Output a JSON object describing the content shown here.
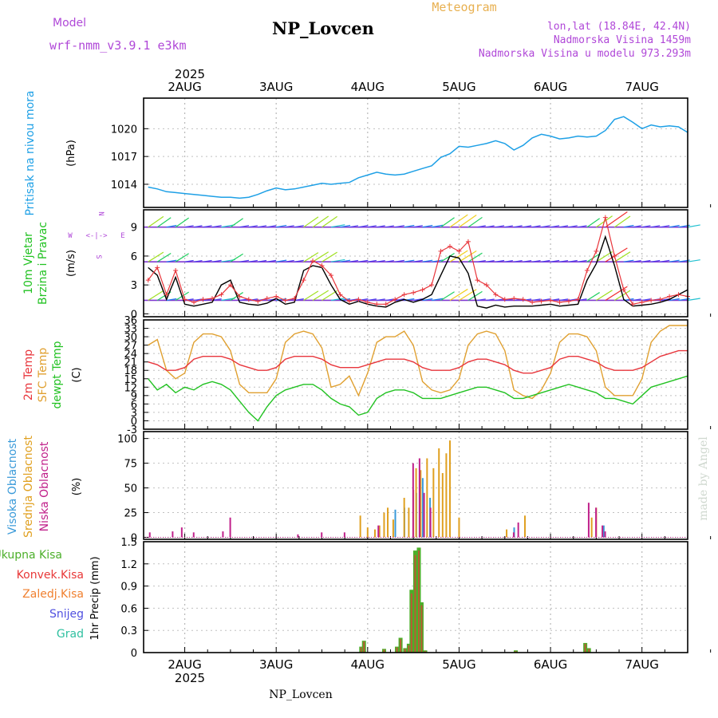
{
  "header": {
    "model_label": "Model",
    "model_name": "wrf-nmm_v3.9.1 e3km",
    "station": "NP_Lovcen",
    "meteogram": "Meteogram",
    "coords": "lon,lat (18.84E, 42.4N)",
    "height": "Nadmorska Visina 1459m",
    "model_height": "Nadmorska Visina u modelu 973.293m",
    "footer_station": "NP_Lovcen",
    "credit": "made by Angel",
    "year": "2025"
  },
  "colors": {
    "pressure": "#1ea0e6",
    "wind_black": "#000000",
    "gust": "#e8363c",
    "t2m": "#e8363c",
    "sfc": "#e0a030",
    "dew": "#22c222",
    "cloud_high": "#3a9ad9",
    "cloud_mid": "#e0a020",
    "cloud_low": "#c0208a",
    "rain_total": "#4caf2a",
    "rain_conv": "#e83838",
    "rain_frozen": "#f08030",
    "snow": "#5050e0",
    "grad": "#30c0a0",
    "label_purple": "#b048d8"
  },
  "chart_data": [
    {
      "type": "line",
      "title": "Pritisak na nivou mora",
      "ylabel": "(hPa)",
      "ylim": [
        1011.5,
        1023.3
      ],
      "yticks": [
        "1014",
        "1017",
        "1020"
      ],
      "ytick_values": [
        1014,
        1017,
        1020
      ],
      "x_unit": "days since 2025-08-01 00:00",
      "x": [
        1.6,
        1.7,
        1.8,
        1.9,
        2.0,
        2.1,
        2.2,
        2.3,
        2.4,
        2.5,
        2.6,
        2.7,
        2.8,
        2.9,
        3.0,
        3.1,
        3.2,
        3.3,
        3.4,
        3.5,
        3.6,
        3.7,
        3.8,
        3.9,
        4.0,
        4.1,
        4.2,
        4.3,
        4.4,
        4.5,
        4.6,
        4.7,
        4.8,
        4.9,
        5.0,
        5.1,
        5.2,
        5.3,
        5.4,
        5.5,
        5.6,
        5.7,
        5.8,
        5.9,
        6.0,
        6.1,
        6.2,
        6.3,
        6.4,
        6.5,
        6.6,
        6.7,
        6.8,
        6.9,
        7.0,
        7.1,
        7.2,
        7.3,
        7.4,
        7.5
      ],
      "series": [
        {
          "name": "MSLP",
          "values": [
            1013.7,
            1013.5,
            1013.2,
            1013.1,
            1013.0,
            1012.9,
            1012.8,
            1012.7,
            1012.6,
            1012.6,
            1012.5,
            1012.6,
            1012.9,
            1013.3,
            1013.6,
            1013.4,
            1013.5,
            1013.7,
            1013.9,
            1014.1,
            1014.0,
            1014.1,
            1014.2,
            1014.7,
            1015.0,
            1015.3,
            1015.1,
            1015.0,
            1015.1,
            1015.4,
            1015.7,
            1016.0,
            1016.9,
            1017.3,
            1018.1,
            1018.0,
            1018.2,
            1018.4,
            1018.7,
            1018.4,
            1017.7,
            1018.2,
            1019.0,
            1019.4,
            1019.2,
            1018.9,
            1019.0,
            1019.2,
            1019.1,
            1019.2,
            1019.8,
            1021.0,
            1021.3,
            1020.7,
            1020.0,
            1020.4,
            1020.2,
            1020.3,
            1020.2,
            1019.6
          ]
        }
      ]
    },
    {
      "type": "line",
      "title": "10m Vjetar Brzina i Pravac",
      "ylabel": "(m/s)",
      "ylim": [
        0,
        10
      ],
      "yticks": [
        "0",
        "3",
        "6",
        "9"
      ],
      "ytick_values": [
        0,
        3,
        6,
        9
      ],
      "barb_levels": [
        1.4,
        5.4,
        9.0
      ],
      "compass": {
        "n": "N",
        "s": "S",
        "w": "W",
        "e": "E",
        "arrows": "<-|->"
      },
      "x": [
        1.6,
        1.7,
        1.8,
        1.9,
        2.0,
        2.1,
        2.2,
        2.3,
        2.4,
        2.5,
        2.6,
        2.7,
        2.8,
        2.9,
        3.0,
        3.1,
        3.2,
        3.3,
        3.4,
        3.5,
        3.6,
        3.7,
        3.8,
        3.9,
        4.0,
        4.1,
        4.2,
        4.3,
        4.4,
        4.5,
        4.6,
        4.7,
        4.8,
        4.9,
        5.0,
        5.1,
        5.2,
        5.3,
        5.4,
        5.5,
        5.6,
        5.7,
        5.8,
        5.9,
        6.0,
        6.1,
        6.2,
        6.3,
        6.4,
        6.5,
        6.6,
        6.7,
        6.8,
        6.9,
        7.0,
        7.1,
        7.2,
        7.3,
        7.4,
        7.5
      ],
      "series": [
        {
          "name": "Brzina",
          "values": [
            4.8,
            4.0,
            1.5,
            3.8,
            1.0,
            0.8,
            1.0,
            1.2,
            3.0,
            3.5,
            1.2,
            1.0,
            0.9,
            1.1,
            1.6,
            1.0,
            1.2,
            4.5,
            5.0,
            4.8,
            3.0,
            1.5,
            1.0,
            1.3,
            1.0,
            0.8,
            0.7,
            1.2,
            1.5,
            1.2,
            1.5,
            2.0,
            4.0,
            6.0,
            5.8,
            4.2,
            0.8,
            0.6,
            0.9,
            0.7,
            0.8,
            0.8,
            0.8,
            0.9,
            1.0,
            0.8,
            0.9,
            1.0,
            3.5,
            5.2,
            8.0,
            5.0,
            1.5,
            0.8,
            0.9,
            1.0,
            1.2,
            1.5,
            2.0,
            2.5
          ]
        },
        {
          "name": "Udari",
          "values": [
            3.5,
            4.8,
            2.0,
            4.5,
            1.5,
            1.2,
            1.5,
            1.6,
            2.0,
            3.0,
            1.8,
            1.5,
            1.3,
            1.6,
            1.8,
            1.4,
            1.6,
            3.5,
            5.5,
            5.0,
            4.0,
            2.0,
            1.3,
            1.5,
            1.2,
            1.0,
            1.0,
            1.5,
            2.0,
            2.2,
            2.5,
            3.0,
            6.5,
            7.0,
            6.5,
            7.5,
            3.5,
            3.0,
            2.0,
            1.5,
            1.6,
            1.5,
            1.2,
            1.3,
            1.4,
            1.2,
            1.3,
            1.5,
            4.5,
            6.5,
            10.0,
            6.0,
            2.5,
            1.0,
            1.2,
            1.4,
            1.5,
            1.8,
            2.0,
            1.8
          ]
        }
      ]
    },
    {
      "type": "line",
      "title": "2m Temp / SFC Temp / dewpt Temp",
      "ylabel": "(C)",
      "ylim": [
        -3,
        36
      ],
      "yticks": [
        "-3",
        "0",
        "3",
        "6",
        "9",
        "12",
        "15",
        "18",
        "21",
        "24",
        "27",
        "30",
        "33",
        "36"
      ],
      "ytick_values": [
        -3,
        0,
        3,
        6,
        9,
        12,
        15,
        18,
        21,
        24,
        27,
        30,
        33,
        36
      ],
      "x": [
        1.6,
        1.7,
        1.8,
        1.9,
        2.0,
        2.1,
        2.2,
        2.3,
        2.4,
        2.5,
        2.6,
        2.7,
        2.8,
        2.9,
        3.0,
        3.1,
        3.2,
        3.3,
        3.4,
        3.5,
        3.6,
        3.7,
        3.8,
        3.9,
        4.0,
        4.1,
        4.2,
        4.3,
        4.4,
        4.5,
        4.6,
        4.7,
        4.8,
        4.9,
        5.0,
        5.1,
        5.2,
        5.3,
        5.4,
        5.5,
        5.6,
        5.7,
        5.8,
        5.9,
        6.0,
        6.1,
        6.2,
        6.3,
        6.4,
        6.5,
        6.6,
        6.7,
        6.8,
        6.9,
        7.0,
        7.1,
        7.2,
        7.3,
        7.4,
        7.5
      ],
      "series": [
        {
          "name": "2m Temp",
          "values": [
            21,
            20,
            18,
            18,
            19,
            22,
            23,
            23,
            23,
            22,
            20,
            19,
            18,
            18,
            19,
            22,
            23,
            23,
            23,
            22,
            20,
            19,
            19,
            19,
            20,
            21,
            22,
            22,
            22,
            21,
            19,
            18,
            18,
            18,
            19,
            21,
            22,
            22,
            21,
            20,
            18,
            17,
            17,
            18,
            19,
            22,
            23,
            23,
            22,
            21,
            19,
            18,
            18,
            18,
            19,
            21,
            23,
            24,
            25,
            25
          ]
        },
        {
          "name": "SFC Temp",
          "values": [
            27,
            29,
            18,
            15,
            17,
            28,
            31,
            31,
            30,
            25,
            13,
            10,
            10,
            10,
            15,
            28,
            31,
            32,
            31,
            26,
            12,
            13,
            16,
            9,
            17,
            28,
            30,
            30,
            32,
            27,
            14,
            11,
            10,
            11,
            15,
            27,
            31,
            32,
            31,
            25,
            11,
            9,
            8,
            11,
            17,
            28,
            31,
            31,
            30,
            25,
            12,
            9,
            9,
            9,
            15,
            28,
            32,
            34,
            34,
            34
          ]
        },
        {
          "name": "dewpt Temp",
          "values": [
            15,
            11,
            13,
            10,
            12,
            11,
            13,
            14,
            13,
            11,
            7,
            3,
            0,
            5,
            9,
            11,
            12,
            13,
            13,
            11,
            8,
            6,
            5,
            2,
            3,
            8,
            10,
            11,
            11,
            10,
            8,
            8,
            8,
            9,
            10,
            11,
            12,
            12,
            11,
            10,
            8,
            8,
            9,
            10,
            11,
            12,
            13,
            12,
            11,
            10,
            8,
            8,
            7,
            6,
            9,
            12,
            13,
            14,
            15,
            16
          ]
        }
      ]
    },
    {
      "type": "bar",
      "title": "Visoka / Srednja / Niska Oblacnost",
      "ylabel": "(%)",
      "ylim": [
        0,
        100
      ],
      "yticks": [
        "0",
        "25",
        "50",
        "75",
        "100"
      ],
      "ytick_values": [
        0,
        25,
        50,
        75,
        100
      ],
      "series": [
        {
          "name": "Visoka Oblacnost",
          "x": [
            4.32,
            4.42,
            4.55,
            4.62,
            4.7,
            5.62,
            6.6
          ],
          "values": [
            28,
            30,
            45,
            60,
            40,
            10,
            12
          ]
        },
        {
          "name": "Srednja Oblacnost",
          "x": [
            3.92,
            4.0,
            4.08,
            4.13,
            4.18,
            4.22,
            4.28,
            4.4,
            4.45,
            4.5,
            4.53,
            4.58,
            4.65,
            4.72,
            4.78,
            4.82,
            4.86,
            4.9,
            5.0,
            5.52,
            5.72,
            6.45,
            6.5
          ],
          "values": [
            22,
            10,
            8,
            12,
            25,
            30,
            18,
            40,
            30,
            48,
            70,
            68,
            80,
            70,
            90,
            65,
            85,
            98,
            20,
            8,
            22,
            20,
            30
          ]
        },
        {
          "name": "Niska Oblacnost",
          "x": [
            1.6,
            1.85,
            1.95,
            2.08,
            2.4,
            2.48,
            3.22,
            3.48,
            3.73,
            4.1,
            4.48,
            4.55,
            4.6,
            4.67,
            5.58,
            5.63,
            6.4,
            6.48,
            6.55,
            6.58
          ],
          "values": [
            5,
            6,
            10,
            5,
            6,
            20,
            3,
            5,
            5,
            12,
            75,
            80,
            45,
            30,
            5,
            15,
            35,
            30,
            12,
            6
          ]
        }
      ]
    },
    {
      "type": "bar",
      "title": "1hr Precip",
      "ylabel": "1hr Precip (mm)",
      "ylim": [
        0,
        1.5
      ],
      "yticks": [
        "0",
        "0.3",
        "0.6",
        "0.9",
        "1.2",
        "1.5"
      ],
      "ytick_values": [
        0,
        0.3,
        0.6,
        0.9,
        1.2,
        1.5
      ],
      "legend": [
        "Ukupna Kisa",
        "Konvek.Kisa",
        "Zaledj.Kisa",
        "Snijeg",
        "Grad"
      ],
      "x": [
        3.93,
        3.96,
        4.18,
        4.32,
        4.36,
        4.41,
        4.45,
        4.48,
        4.52,
        4.56,
        4.59,
        4.63,
        5.62,
        6.38,
        6.42
      ],
      "series": [
        {
          "name": "Ukupna Kisa",
          "values": [
            0.08,
            0.16,
            0.05,
            0.08,
            0.2,
            0.06,
            0.12,
            0.85,
            1.38,
            1.42,
            0.68,
            0.03,
            0.03,
            0.13,
            0.06
          ]
        },
        {
          "name": "Konvek.Kisa",
          "values": [
            0.07,
            0.15,
            0.04,
            0.07,
            0.18,
            0.05,
            0.1,
            0.8,
            1.32,
            1.38,
            0.64,
            0.02,
            0.02,
            0.12,
            0.05
          ]
        }
      ]
    }
  ],
  "axes": {
    "x_min": 1.55,
    "x_max": 7.5,
    "date_ticks": [
      2,
      3,
      4,
      5,
      6,
      7
    ],
    "date_labels": [
      "2AUG",
      "3AUG",
      "4AUG",
      "5AUG",
      "6AUG",
      "7AUG"
    ],
    "year": "2025"
  },
  "side_labels": {
    "pressure_title": "Pritisak na nivou mora",
    "pressure_unit": "(hPa)",
    "wind_title1": "10m Vjetar",
    "wind_title2": "Brzina i Pravac",
    "wind_unit": "(m/s)",
    "temp_t2m": "2m Temp",
    "temp_sfc": "SFC Temp",
    "temp_dew": "dewpt Temp",
    "temp_unit": "(C)",
    "cloud_high": "Visoka Oblacnost",
    "cloud_mid": "Srednja Oblacnost",
    "cloud_low": "Niska Oblacnost",
    "cloud_unit": "(%)",
    "precip_unit": "1hr Precip (mm)",
    "leg_total": "Ukupna Kisa",
    "leg_conv": "Konvek.Kisa",
    "leg_frozen": "Zaledj.Kisa",
    "leg_snow": "Snijeg",
    "leg_grad": "Grad"
  }
}
